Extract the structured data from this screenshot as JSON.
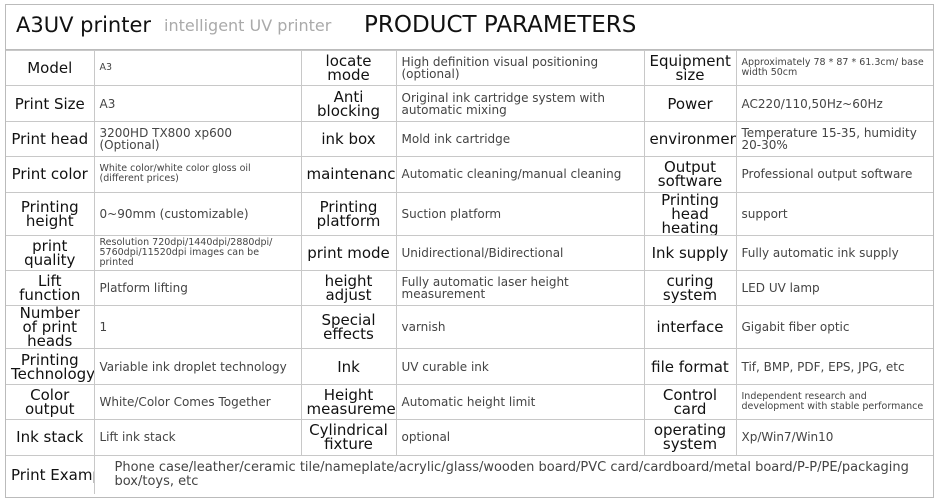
{
  "header": {
    "title": "A3UV printer",
    "subtitle": "intelligent UV printer",
    "heading": "PRODUCT PARAMETERS"
  },
  "rows": [
    [
      {
        "l": "Model",
        "v": "A3",
        "s": 1
      },
      {
        "l": "locate mode",
        "v": "High definition visual positioning (optional)"
      },
      {
        "l": "Equipment size",
        "v": "Approximately 78 * 87 * 61.3cm/ base width 50cm",
        "s": 1
      }
    ],
    [
      {
        "l": "Print Size",
        "v": "A3"
      },
      {
        "l": "Anti blocking",
        "v": "Original ink cartridge system with automatic mixing"
      },
      {
        "l": "Power",
        "v": "AC220/110,50Hz~60Hz"
      }
    ],
    [
      {
        "l": "Print head",
        "v": "3200HD TX800  xp600 (Optional)"
      },
      {
        "l": "ink box",
        "v": "Mold ink cartridge"
      },
      {
        "l": "environment",
        "v": "Temperature 15-35, humidity 20-30%"
      }
    ],
    [
      {
        "l": "Print color",
        "v": "White color/white color gloss oil (different prices)",
        "s": 1
      },
      {
        "l": "maintenance",
        "v": "Automatic cleaning/manual cleaning"
      },
      {
        "l": "Output software",
        "v": "Professional output software"
      }
    ],
    [
      {
        "l": "Printing height",
        "v": "0~90mm (customizable)"
      },
      {
        "l": "Printing platform",
        "v": "Suction platform"
      },
      {
        "l": "Printing head heating",
        "v": "support"
      }
    ],
    [
      {
        "l": "print quality",
        "v": "Resolution 720dpi/1440dpi/2880dpi/ 5760dpi/11520dpi images can be printed",
        "s": 1
      },
      {
        "l": "print mode",
        "v": "Unidirectional/Bidirectional"
      },
      {
        "l": "Ink supply",
        "v": "Fully automatic ink supply"
      }
    ],
    [
      {
        "l": "Lift function",
        "v": "Platform lifting"
      },
      {
        "l": "height adjust",
        "v": "Fully automatic laser height measurement"
      },
      {
        "l": "curing system",
        "v": "LED UV lamp"
      }
    ],
    [
      {
        "l": "Number of print heads",
        "v": "1"
      },
      {
        "l": "Special effects",
        "v": "varnish"
      },
      {
        "l": "interface",
        "v": "Gigabit fiber optic"
      }
    ],
    [
      {
        "l": "Printing Technology",
        "v": "Variable ink droplet technology"
      },
      {
        "l": "Ink",
        "v": "UV curable ink"
      },
      {
        "l": "file format",
        "v": "Tif, BMP, PDF, EPS, JPG, etc"
      }
    ],
    [
      {
        "l": "Color output",
        "v": "White/Color Comes Together"
      },
      {
        "l": "Height measurement",
        "v": "Automatic height limit"
      },
      {
        "l": "Control card",
        "v": "Independent research and development with stable performance",
        "s": 1
      }
    ],
    [
      {
        "l": "Ink stack",
        "v": "Lift ink stack"
      },
      {
        "l": "Cylindrical fixture",
        "v": "optional"
      },
      {
        "l": "operating system",
        "v": "Xp/Win7/Win10"
      }
    ]
  ],
  "example": {
    "label": "Print Example",
    "value": "Phone case/leather/ceramic tile/nameplate/acrylic/glass/wooden board/PVC card/cardboard/metal board/P-P/PE/packaging box/toys, etc"
  }
}
